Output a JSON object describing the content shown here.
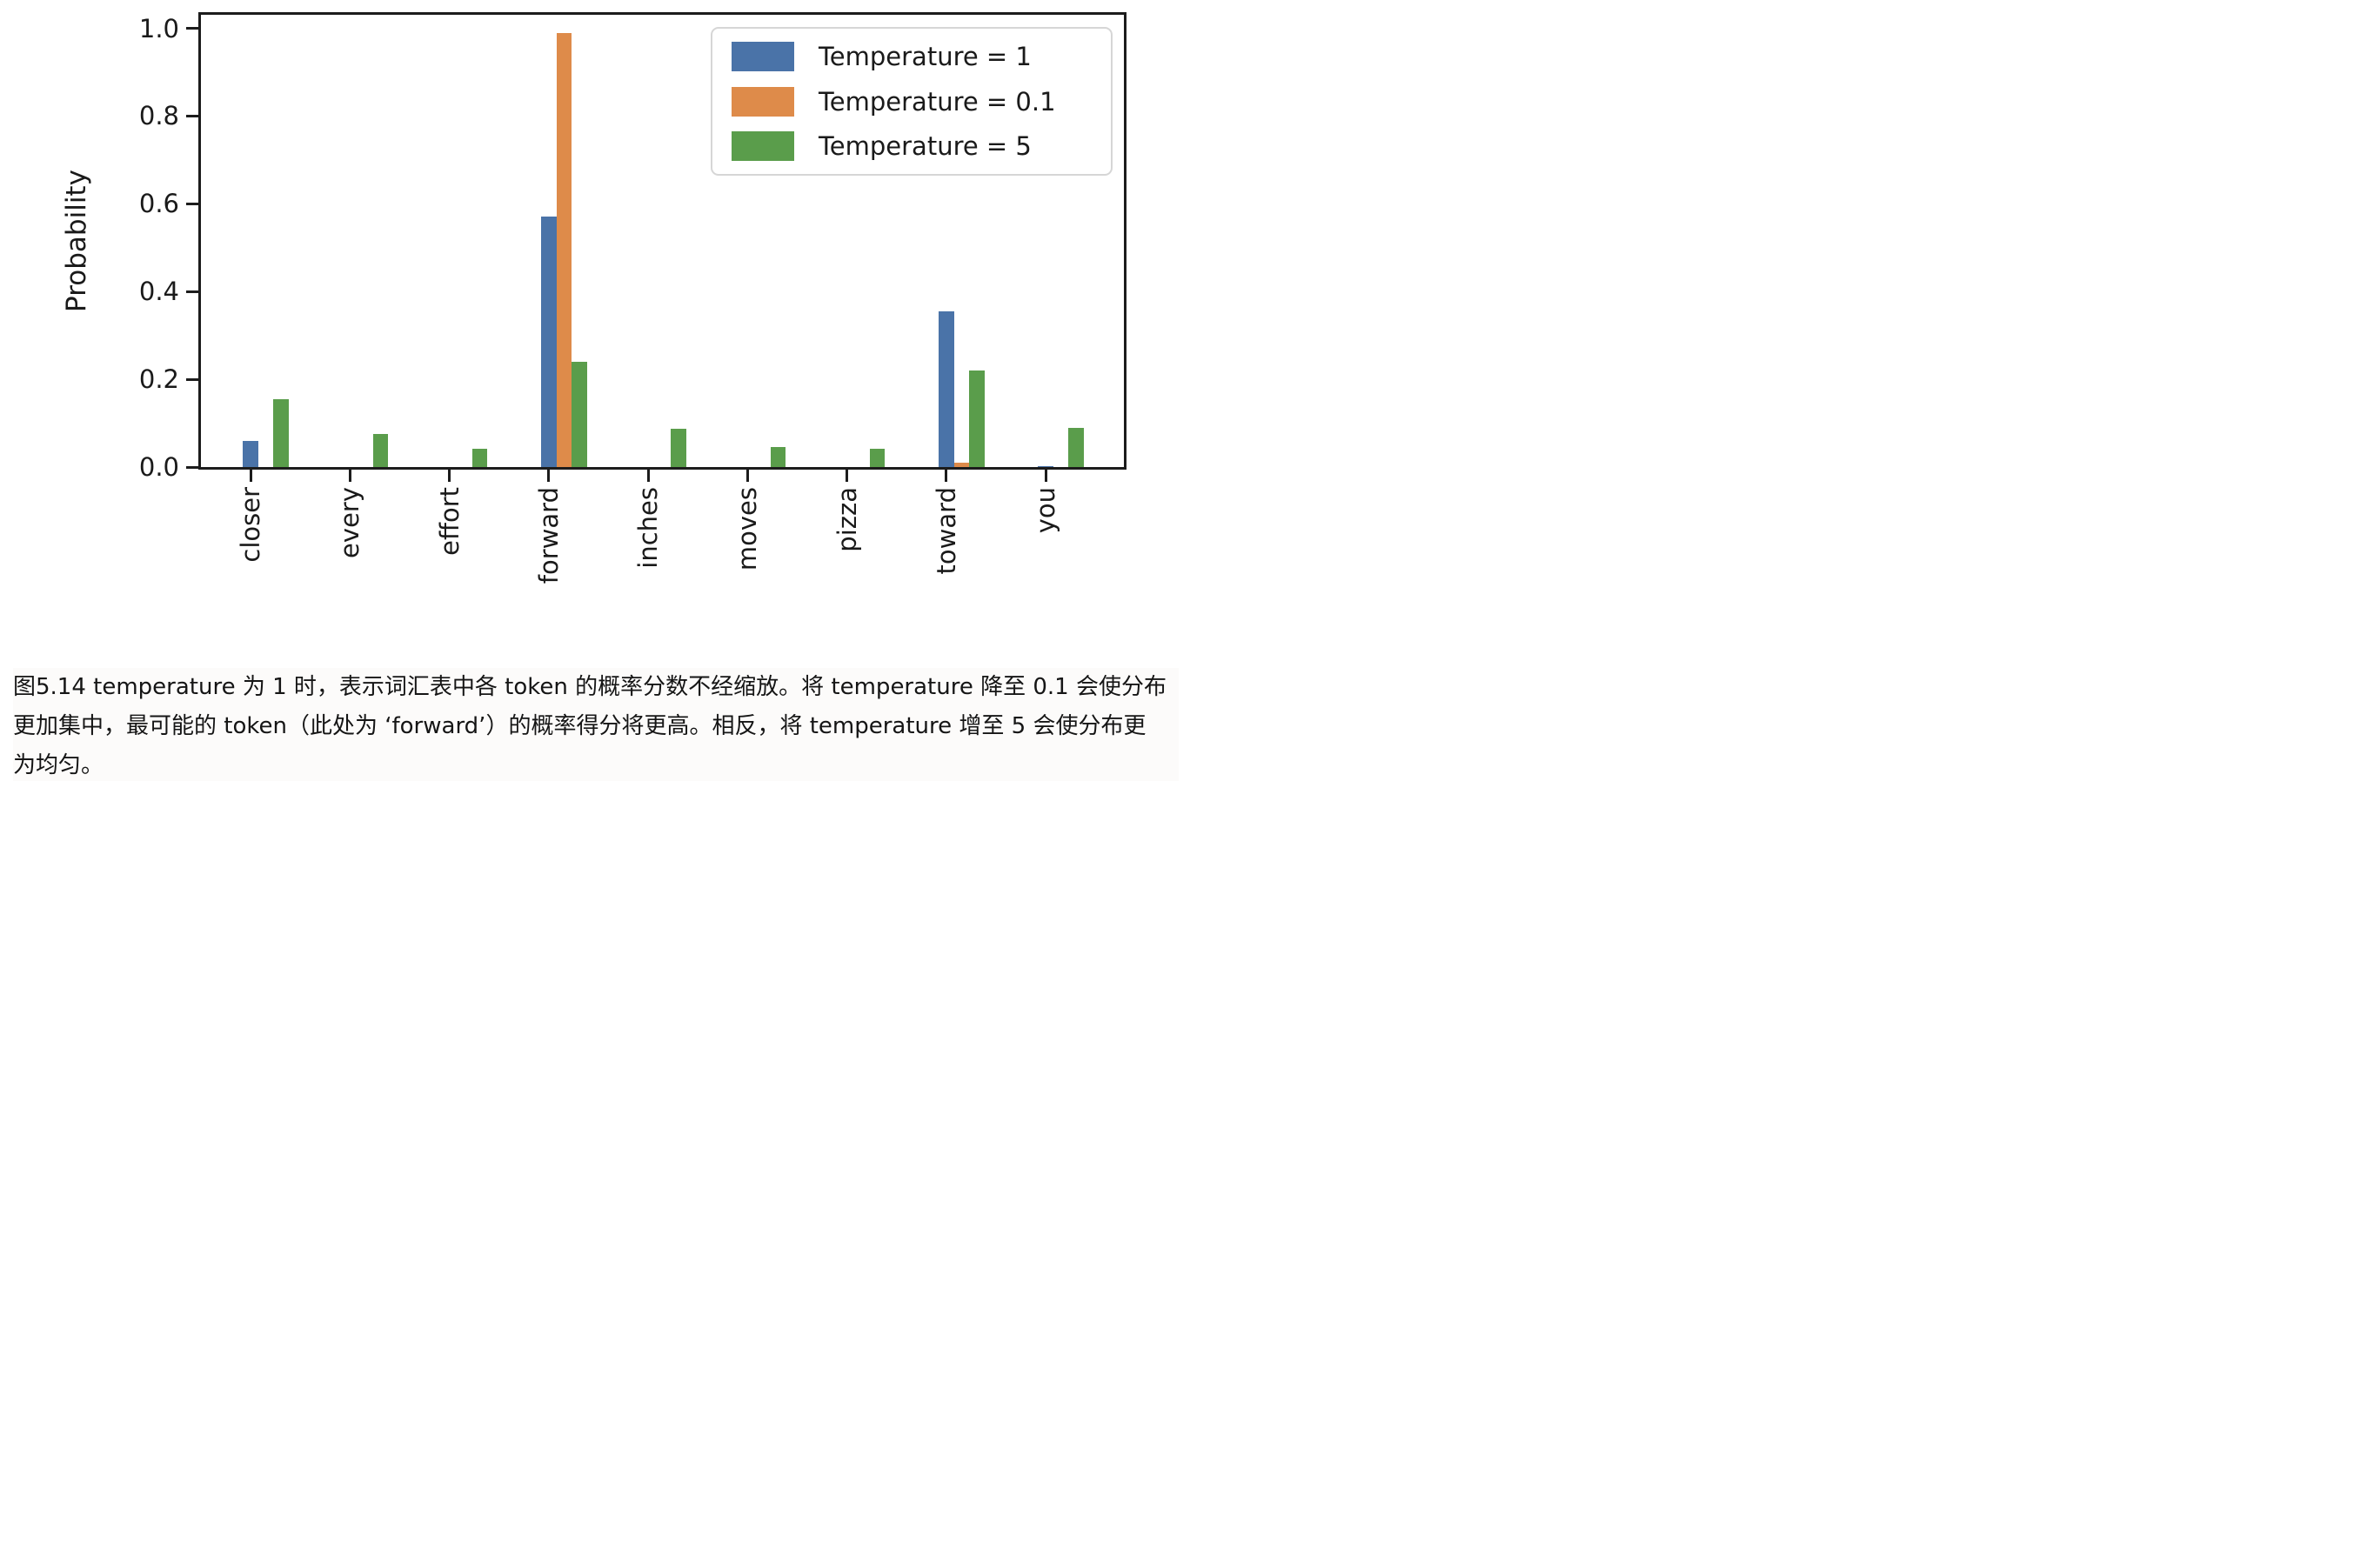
{
  "chart_data": {
    "type": "bar",
    "title": "",
    "xlabel": "",
    "ylabel": "Probability",
    "categories": [
      "closer",
      "every",
      "effort",
      "forward",
      "inches",
      "moves",
      "pizza",
      "toward",
      "you"
    ],
    "series": [
      {
        "name": "Temperature = 1",
        "color": "#4a73a8",
        "values": [
          0.06,
          0,
          0,
          0.57,
          0,
          0,
          0,
          0.355,
          0.003
        ]
      },
      {
        "name": "Temperature = 0.1",
        "color": "#de8b4a",
        "values": [
          0,
          0,
          0,
          0.99,
          0,
          0,
          0,
          0.01,
          0
        ]
      },
      {
        "name": "Temperature = 5",
        "color": "#5a9d4b",
        "values": [
          0.155,
          0.075,
          0.042,
          0.24,
          0.088,
          0.045,
          0.042,
          0.22,
          0.09
        ]
      }
    ],
    "yticks": [
      0.0,
      0.2,
      0.4,
      0.6,
      0.8,
      1.0
    ],
    "ylim": [
      0,
      1.043
    ],
    "grid": false,
    "legend_position": "upper right",
    "axis_color": "#1c1c1c"
  },
  "caption": {
    "lines": [
      "图5.14 temperature 为 1 时，表示词汇表中各 token 的概率分数不经缩放。将 temperature 降至 0.1 会使分布",
      "更加集中，最可能的 token（此处为 ‘forward’）的概率得分将更高。相反，将 temperature 增至 5 会使分布更",
      "为均匀。"
    ]
  }
}
